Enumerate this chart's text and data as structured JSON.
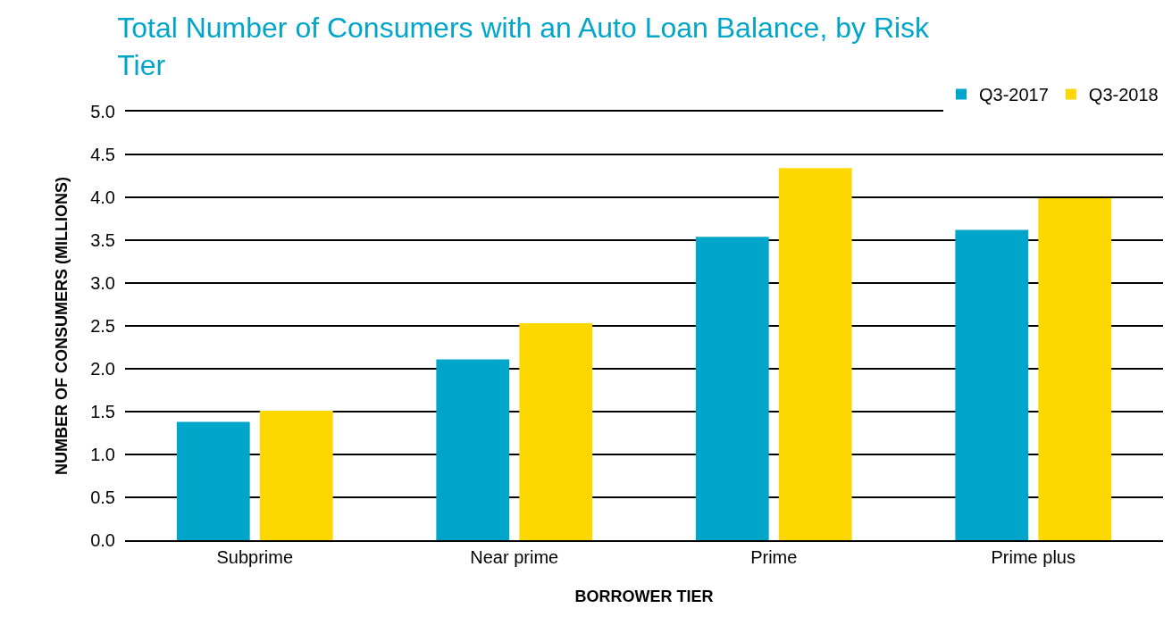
{
  "chart_data": {
    "type": "bar",
    "title": "Total Number of Consumers with an Auto Loan Balance, by Risk Tier",
    "xlabel": "BORROWER TIER",
    "ylabel": "NUMBER OF CONSUMERS (MILLIONS)",
    "categories": [
      "Subprime",
      "Near prime",
      "Prime",
      "Prime plus"
    ],
    "series": [
      {
        "name": "Q3-2017",
        "color": "#00a6ca",
        "values": [
          1.38,
          2.11,
          3.54,
          3.62
        ]
      },
      {
        "name": "Q3-2018",
        "color": "#fcd800",
        "values": [
          1.51,
          2.53,
          4.34,
          3.99
        ]
      }
    ],
    "ylim": [
      0,
      5
    ],
    "yticks": [
      {
        "value": 0,
        "label": "0.0"
      },
      {
        "value": 0.5,
        "label": "0.5"
      },
      {
        "value": 1,
        "label": "1.0"
      },
      {
        "value": 1.5,
        "label": "1.5"
      },
      {
        "value": 2,
        "label": "2.0"
      },
      {
        "value": 2.5,
        "label": "2.5"
      },
      {
        "value": 3,
        "label": "3.0"
      },
      {
        "value": 3.5,
        "label": "3.5"
      },
      {
        "value": 4,
        "label": "4.0"
      },
      {
        "value": 4.5,
        "label": "4.5"
      },
      {
        "value": 5,
        "label": "5.0"
      }
    ],
    "grid": "y",
    "legend": "top right"
  }
}
